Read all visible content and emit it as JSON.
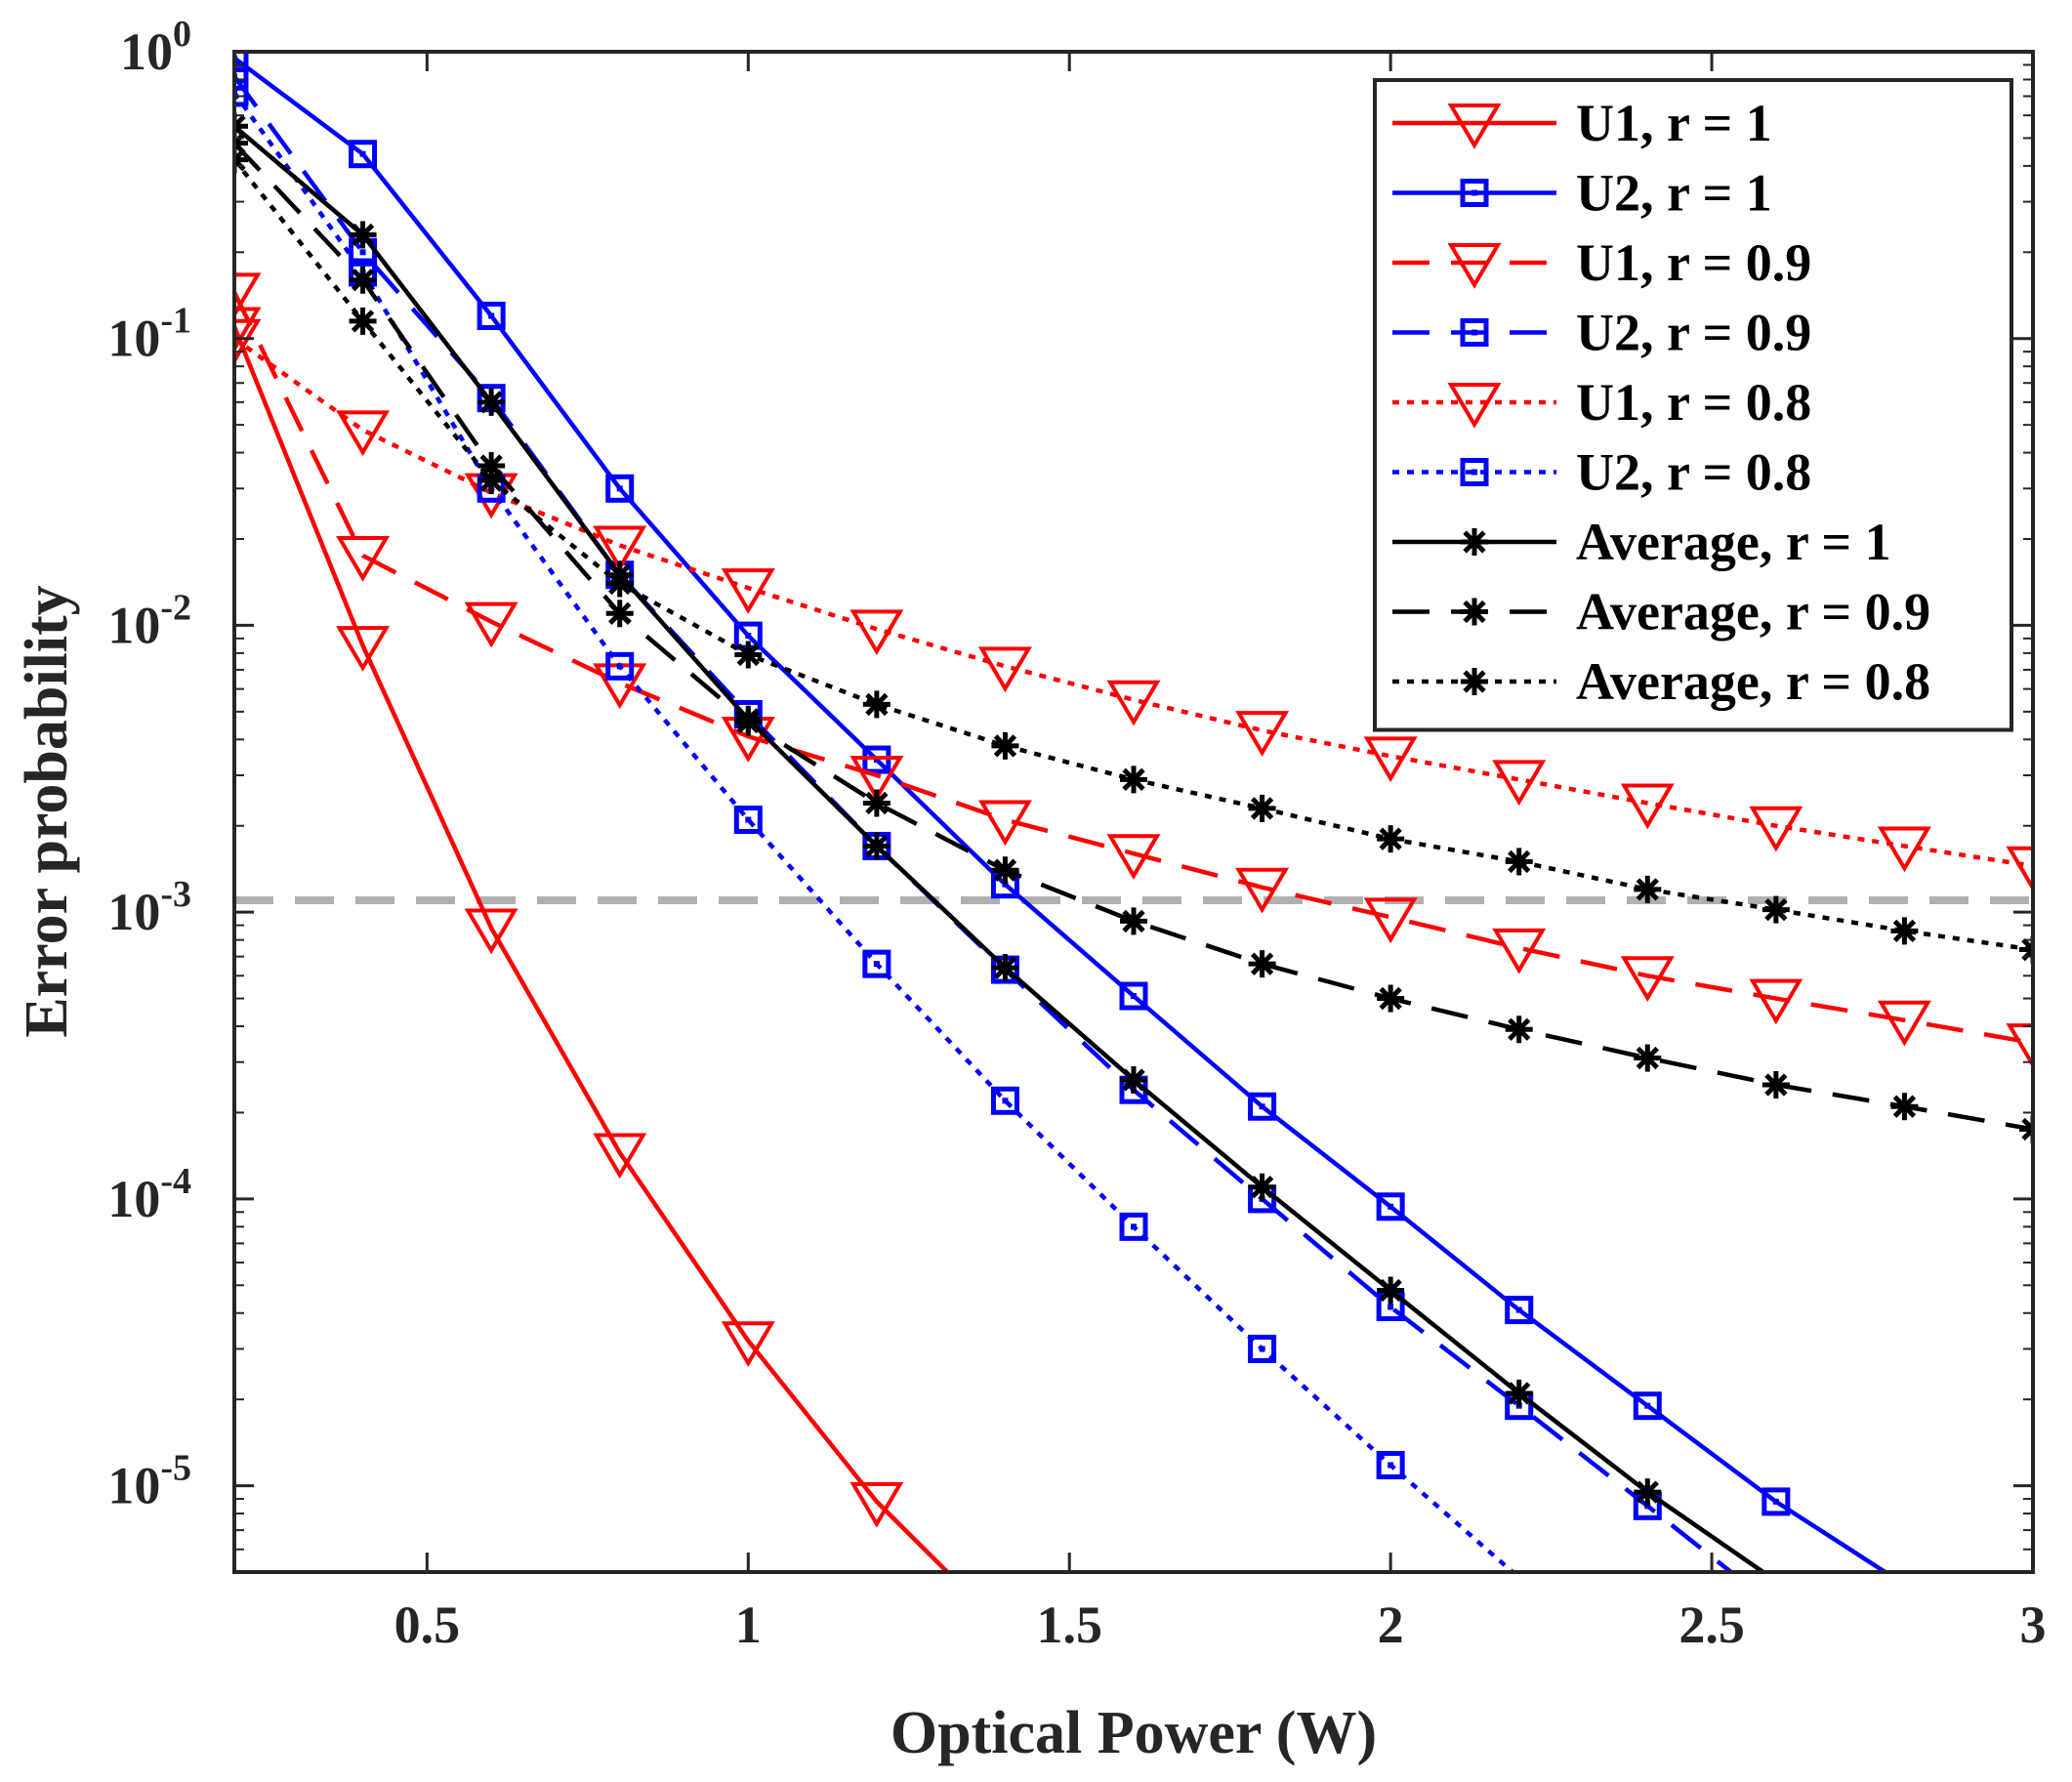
{
  "chart_data": {
    "type": "line",
    "xlabel": "Optical Power (W)",
    "ylabel": "Error probability",
    "xlim": [
      0.2,
      3
    ],
    "ylim": [
      5e-06,
      1
    ],
    "yscale": "log",
    "grid": false,
    "legend_position": "top-right",
    "x_ticks": [
      {
        "value": 0.5,
        "label": "0.5"
      },
      {
        "value": 1,
        "label": "1"
      },
      {
        "value": 1.5,
        "label": "1.5"
      },
      {
        "value": 2,
        "label": "2"
      },
      {
        "value": 2.5,
        "label": "2.5"
      },
      {
        "value": 3,
        "label": "3"
      }
    ],
    "y_ticks": [
      {
        "value": 1,
        "base": "10",
        "exp": "0"
      },
      {
        "value": 0.1,
        "base": "10",
        "exp": "-1"
      },
      {
        "value": 0.01,
        "base": "10",
        "exp": "-2"
      },
      {
        "value": 0.001,
        "base": "10",
        "exp": "-3"
      },
      {
        "value": 0.0001,
        "base": "10",
        "exp": "-4"
      },
      {
        "value": 1e-05,
        "base": "10",
        "exp": "-5"
      }
    ],
    "reference_line": {
      "y": 0.0011,
      "color": "#b0b0b0",
      "style": "dashed"
    },
    "series": [
      {
        "name": "U1, r = 1",
        "color": "#ff0000",
        "line": "solid",
        "marker": "triangle-down",
        "x": [
          0.2,
          0.4,
          0.6,
          0.8,
          1.0,
          1.2,
          1.31
        ],
        "y": [
          0.11,
          0.0085,
          0.00088,
          0.000145,
          3.2e-05,
          8.8e-06,
          5e-06
        ],
        "marker_count": 6
      },
      {
        "name": "U2, r = 1",
        "color": "#0000ff",
        "line": "solid",
        "marker": "square",
        "x": [
          0.2,
          0.4,
          0.6,
          0.8,
          1.0,
          1.2,
          1.4,
          1.6,
          1.8,
          2.0,
          2.2,
          2.4,
          2.6,
          2.77
        ],
        "y": [
          0.95,
          0.44,
          0.12,
          0.03,
          0.0092,
          0.0034,
          0.00125,
          0.00051,
          0.00021,
          9.4e-05,
          4.1e-05,
          1.9e-05,
          8.8e-06,
          5e-06
        ],
        "marker_count": 13
      },
      {
        "name": "U1, r = 0.9",
        "color": "#ff0000",
        "line": "dashed",
        "marker": "triangle-down",
        "x": [
          0.2,
          0.4,
          0.6,
          0.8,
          1.0,
          1.2,
          1.4,
          1.6,
          1.8,
          2.0,
          2.2,
          2.4,
          2.6,
          2.8,
          3.0
        ],
        "y": [
          0.145,
          0.0175,
          0.0103,
          0.0063,
          0.0041,
          0.003,
          0.0021,
          0.0016,
          0.00122,
          0.00096,
          0.00075,
          0.0006,
          0.0005,
          0.00042,
          0.00035
        ],
        "marker_count": 15
      },
      {
        "name": "U2, r = 0.9",
        "color": "#0000ff",
        "line": "dashed",
        "marker": "square",
        "x": [
          0.2,
          0.4,
          0.6,
          0.8,
          1.0,
          1.2,
          1.4,
          1.6,
          1.8,
          2.0,
          2.2,
          2.4,
          2.53
        ],
        "y": [
          0.82,
          0.2,
          0.062,
          0.015,
          0.0049,
          0.0017,
          0.00063,
          0.00024,
          0.0001,
          4.2e-05,
          1.9e-05,
          8.5e-06,
          5e-06
        ],
        "marker_count": 12
      },
      {
        "name": "U1, r = 0.8",
        "color": "#ff0000",
        "line": "dotted",
        "marker": "triangle-down",
        "x": [
          0.2,
          0.4,
          0.6,
          0.8,
          1.0,
          1.2,
          1.4,
          1.6,
          1.8,
          2.0,
          2.2,
          2.4,
          2.6,
          2.8,
          3.0
        ],
        "y": [
          0.1,
          0.048,
          0.029,
          0.019,
          0.0135,
          0.0097,
          0.0072,
          0.0055,
          0.0043,
          0.0035,
          0.0029,
          0.0024,
          0.002,
          0.0017,
          0.00145
        ],
        "marker_count": 15
      },
      {
        "name": "U2, r = 0.8",
        "color": "#0000ff",
        "line": "dotted",
        "marker": "square",
        "x": [
          0.2,
          0.4,
          0.6,
          0.8,
          1.0,
          1.2,
          1.4,
          1.6,
          1.8,
          2.0,
          2.19
        ],
        "y": [
          0.72,
          0.17,
          0.03,
          0.0072,
          0.0021,
          0.00066,
          0.00022,
          8e-05,
          3e-05,
          1.18e-05,
          5e-06
        ],
        "marker_count": 10
      },
      {
        "name": "Average, r = 1",
        "color": "#000000",
        "line": "solid",
        "marker": "asterisk",
        "x": [
          0.2,
          0.4,
          0.6,
          0.8,
          1.0,
          1.2,
          1.4,
          1.6,
          1.8,
          2.0,
          2.2,
          2.4,
          2.58
        ],
        "y": [
          0.55,
          0.23,
          0.06,
          0.015,
          0.0047,
          0.0017,
          0.00064,
          0.00026,
          0.00011,
          4.8e-05,
          2.1e-05,
          9.5e-06,
          5e-06
        ],
        "marker_count": 12
      },
      {
        "name": "Average, r = 0.9",
        "color": "#000000",
        "line": "dashed",
        "marker": "asterisk",
        "x": [
          0.2,
          0.4,
          0.6,
          0.8,
          1.0,
          1.2,
          1.4,
          1.6,
          1.8,
          2.0,
          2.2,
          2.4,
          2.6,
          2.8,
          3.0
        ],
        "y": [
          0.48,
          0.16,
          0.036,
          0.011,
          0.0046,
          0.0024,
          0.0014,
          0.00093,
          0.00066,
          0.0005,
          0.00039,
          0.00031,
          0.00025,
          0.00021,
          0.000175
        ],
        "marker_count": 15
      },
      {
        "name": "Average, r = 0.8",
        "color": "#000000",
        "line": "dotted",
        "marker": "asterisk",
        "x": [
          0.2,
          0.4,
          0.6,
          0.8,
          1.0,
          1.2,
          1.4,
          1.6,
          1.8,
          2.0,
          2.2,
          2.4,
          2.6,
          2.8,
          3.0
        ],
        "y": [
          0.42,
          0.115,
          0.032,
          0.014,
          0.0079,
          0.0053,
          0.0038,
          0.0029,
          0.0023,
          0.0018,
          0.0015,
          0.0012,
          0.00102,
          0.00086,
          0.00074
        ],
        "marker_count": 15
      }
    ]
  }
}
